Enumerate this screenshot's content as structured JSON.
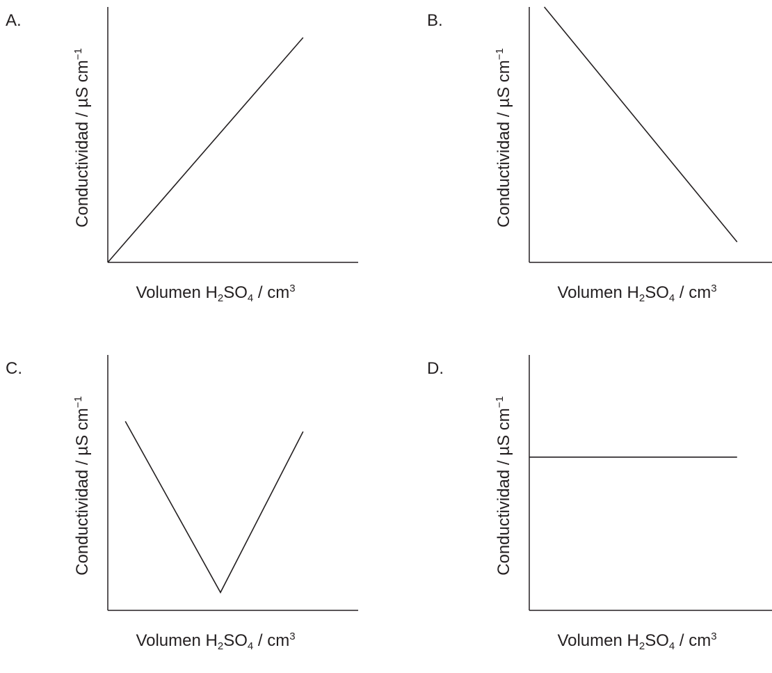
{
  "chart_data": [
    {
      "panel_label": "A.",
      "type": "line",
      "ylabel": {
        "main": "Conductividad / µS cm",
        "sup": "−1"
      },
      "xlabel": {
        "pre": "Volumen H",
        "sub1": "2",
        "mid": "SO",
        "sub2": "4",
        "post": " / cm",
        "sup": "3"
      },
      "series": [
        {
          "x": [
            0,
            0.78
          ],
          "y": [
            0,
            0.88
          ]
        }
      ],
      "xlim": [
        0,
        1
      ],
      "ylim": [
        0,
        1
      ]
    },
    {
      "panel_label": "B.",
      "type": "line",
      "ylabel": {
        "main": "Conductividad / µS cm",
        "sup": "−1"
      },
      "xlabel": {
        "pre": "Volumen H",
        "sub1": "2",
        "mid": "SO",
        "sub2": "4",
        "post": " / cm",
        "sup": "3"
      },
      "series": [
        {
          "x": [
            0.06,
            0.83
          ],
          "y": [
            1.0,
            0.08
          ]
        }
      ],
      "xlim": [
        0,
        1
      ],
      "ylim": [
        0,
        1
      ]
    },
    {
      "panel_label": "C.",
      "type": "line",
      "ylabel": {
        "main": "Conductividad / µS cm",
        "sup": "−1"
      },
      "xlabel": {
        "pre": "Volumen H",
        "sub1": "2",
        "mid": "SO",
        "sub2": "4",
        "post": " / cm",
        "sup": "3"
      },
      "series": [
        {
          "x": [
            0.07,
            0.45,
            0.78
          ],
          "y": [
            0.74,
            0.07,
            0.7
          ]
        }
      ],
      "xlim": [
        0,
        1
      ],
      "ylim": [
        0,
        1
      ]
    },
    {
      "panel_label": "D.",
      "type": "line",
      "ylabel": {
        "main": "Conductividad / µS cm",
        "sup": "−1"
      },
      "xlabel": {
        "pre": "Volumen H",
        "sub1": "2",
        "mid": "SO",
        "sub2": "4",
        "post": " / cm",
        "sup": "3"
      },
      "series": [
        {
          "x": [
            0,
            0.83
          ],
          "y": [
            0.6,
            0.6
          ]
        }
      ],
      "xlim": [
        0,
        1
      ],
      "ylim": [
        0,
        1
      ]
    }
  ],
  "colors": {
    "ink": "#231f20",
    "background": "#ffffff"
  }
}
